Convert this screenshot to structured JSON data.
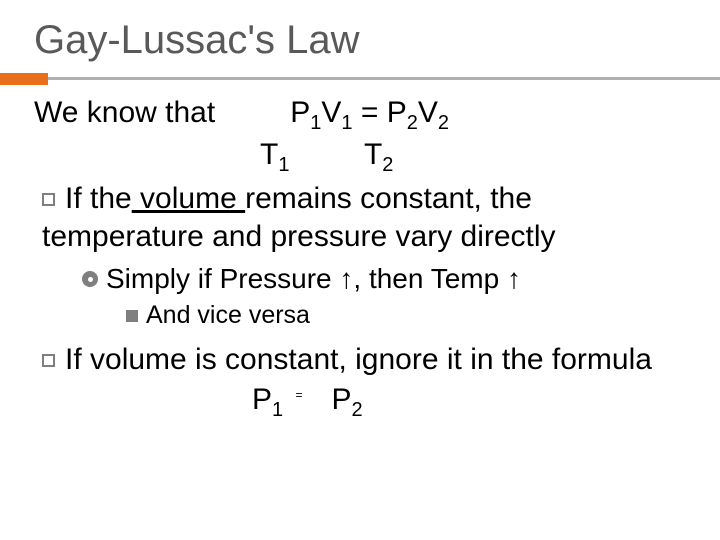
{
  "title": "Gay-Lussac's Law",
  "accent_color": "#e8701a",
  "line_color": "#b0b0b0",
  "body": {
    "intro_prefix": "We know that",
    "eq_top": {
      "p1": "P",
      "s1": "1",
      "v1": "V",
      "s1b": "1",
      "eq": " = ",
      "p2": "P",
      "s2": "2",
      "v2": "V",
      "s2b": "2"
    },
    "eq_bottom": {
      "t1": "T",
      "s1": "1",
      "t2": "T",
      "s2": "2"
    },
    "bullet1_a": "If the",
    "bullet1_volume": " volume ",
    "bullet1_b": "remains constant, the temperature and pressure vary directly",
    "sub_bullet": "Simply if Pressure ↑, then Temp ↑",
    "sub2_bullet": "And vice versa",
    "bullet2": "If volume is constant, ignore it in the formula",
    "formula2": {
      "p1": "P",
      "s1": "1",
      "eq": "=",
      "p2": "P",
      "s2": "2"
    }
  },
  "fonts": {
    "title_size": 40,
    "body_size": 30,
    "sub_size": 28,
    "sub2_size": 25
  },
  "text_colors": {
    "title": "#595959",
    "body": "#000000",
    "bullet": "#7f7f7f"
  }
}
